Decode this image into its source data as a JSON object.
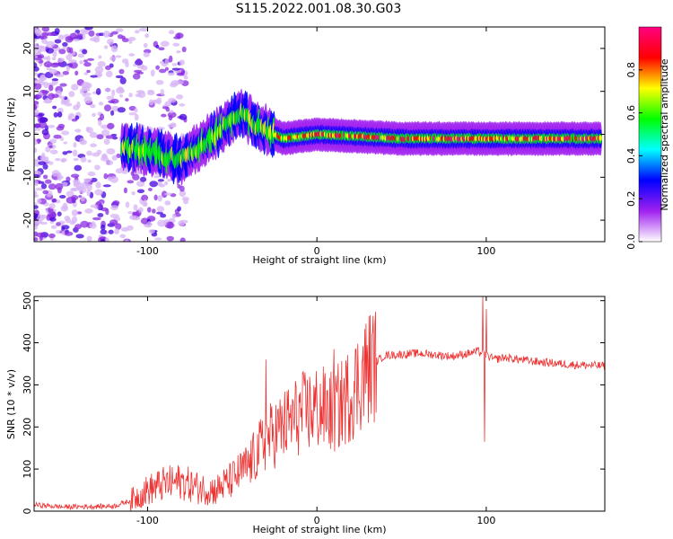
{
  "title": "S115.2022.001.08.30.G03",
  "colors": {
    "snr_line": "#ee3333",
    "colormap": [
      "#ffffff",
      "#a020f0",
      "#0000ff",
      "#00ffff",
      "#00ff00",
      "#ffff00",
      "#ff0000",
      "#ff0080"
    ]
  },
  "chart_data": [
    {
      "type": "heatmap",
      "xlabel": "Height of straight line (km)",
      "ylabel": "Frequency (Hz)",
      "xlim": [
        -167,
        170
      ],
      "ylim": [
        -25,
        25
      ],
      "xticks": [
        -100,
        0,
        100
      ],
      "xtick_labels": [
        "-100",
        "0",
        "100"
      ],
      "yticks": [
        -20,
        -10,
        0,
        10,
        20
      ],
      "ytick_labels": [
        "-20",
        "-10",
        "0",
        "10",
        "20"
      ],
      "grid": false,
      "colorbar": {
        "label": "Normalized spectral amplitude",
        "range": [
          0,
          1
        ],
        "ticks": [
          0.0,
          0.2,
          0.4,
          0.6,
          0.8
        ],
        "tick_labels": [
          "0.0",
          "0.2",
          "0.4",
          "0.6",
          "0.8"
        ]
      },
      "ridge": [
        {
          "x": -110,
          "y": -3
        },
        {
          "x": -80,
          "y": -6
        },
        {
          "x": -60,
          "y": 0
        },
        {
          "x": -45,
          "y": 5
        },
        {
          "x": -35,
          "y": 2
        },
        {
          "x": -20,
          "y": -1
        },
        {
          "x": 0,
          "y": 0
        },
        {
          "x": 50,
          "y": -1
        },
        {
          "x": 90,
          "y": -1
        },
        {
          "x": 120,
          "y": -1
        },
        {
          "x": 168,
          "y": -1
        }
      ]
    },
    {
      "type": "line",
      "xlabel": "Height of straight line (km)",
      "ylabel": "SNR (10 * v/v)",
      "xlim": [
        -167,
        170
      ],
      "ylim": [
        0,
        510
      ],
      "xticks": [
        -100,
        0,
        100
      ],
      "xtick_labels": [
        "-100",
        "0",
        "100"
      ],
      "yticks": [
        0,
        100,
        200,
        300,
        400,
        500
      ],
      "ytick_labels": [
        "0",
        "100",
        "200",
        "300",
        "400",
        "500"
      ],
      "grid": false,
      "x": [
        -167,
        -150,
        -120,
        -110,
        -100,
        -90,
        -80,
        -70,
        -60,
        -50,
        -40,
        -30,
        -20,
        -10,
        0,
        10,
        20,
        30,
        40,
        60,
        80,
        90,
        95,
        100,
        105,
        110,
        130,
        150,
        170
      ],
      "y": [
        15,
        10,
        12,
        25,
        50,
        65,
        70,
        55,
        50,
        75,
        110,
        170,
        200,
        230,
        245,
        235,
        280,
        340,
        370,
        375,
        368,
        375,
        380,
        370,
        360,
        365,
        355,
        348,
        345
      ],
      "spikes": [
        {
          "x": -30,
          "y": 360
        },
        {
          "x": 10,
          "y": 385
        },
        {
          "x": 98,
          "y": 510
        },
        {
          "x": 99,
          "y": 165
        },
        {
          "x": 100,
          "y": 480
        }
      ]
    }
  ]
}
